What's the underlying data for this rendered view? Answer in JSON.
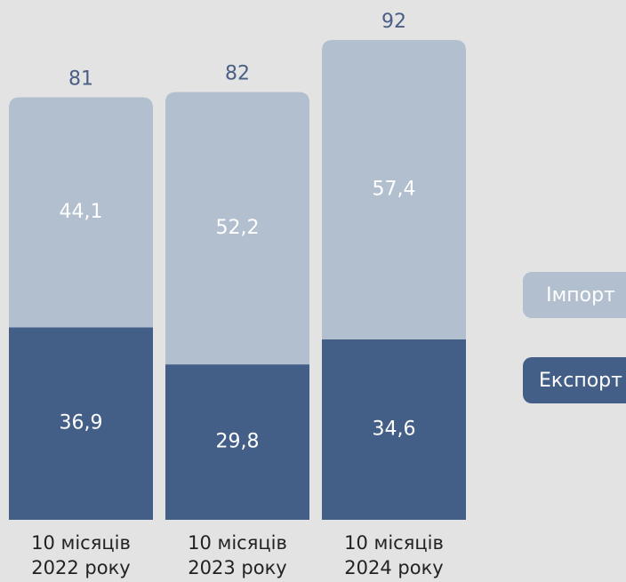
{
  "chart_data": {
    "type": "bar",
    "stacked": true,
    "categories": [
      [
        "10 місяців",
        "2022 року"
      ],
      [
        "10 місяців",
        "2023 року"
      ],
      [
        "10 місяців",
        "2024 року"
      ]
    ],
    "series": [
      {
        "name": "Експорт",
        "values": [
          36.9,
          29.8,
          34.6
        ],
        "labels": [
          "36,9",
          "29,8",
          "34,6"
        ],
        "color": "#445f87"
      },
      {
        "name": "Імпорт",
        "values": [
          44.1,
          52.2,
          57.4
        ],
        "labels": [
          "44,1",
          "52,2",
          "57,4"
        ],
        "color": "#b2bfcf"
      }
    ],
    "totals": [
      "81",
      "82",
      "92"
    ],
    "total_label_color": "#4a5f85",
    "legend_position": "right",
    "title": "",
    "xlabel": "",
    "ylabel": "",
    "ylim": [
      0,
      92
    ],
    "grid": false
  },
  "legend": {
    "import_label": "Імпорт",
    "export_label": "Експорт"
  }
}
